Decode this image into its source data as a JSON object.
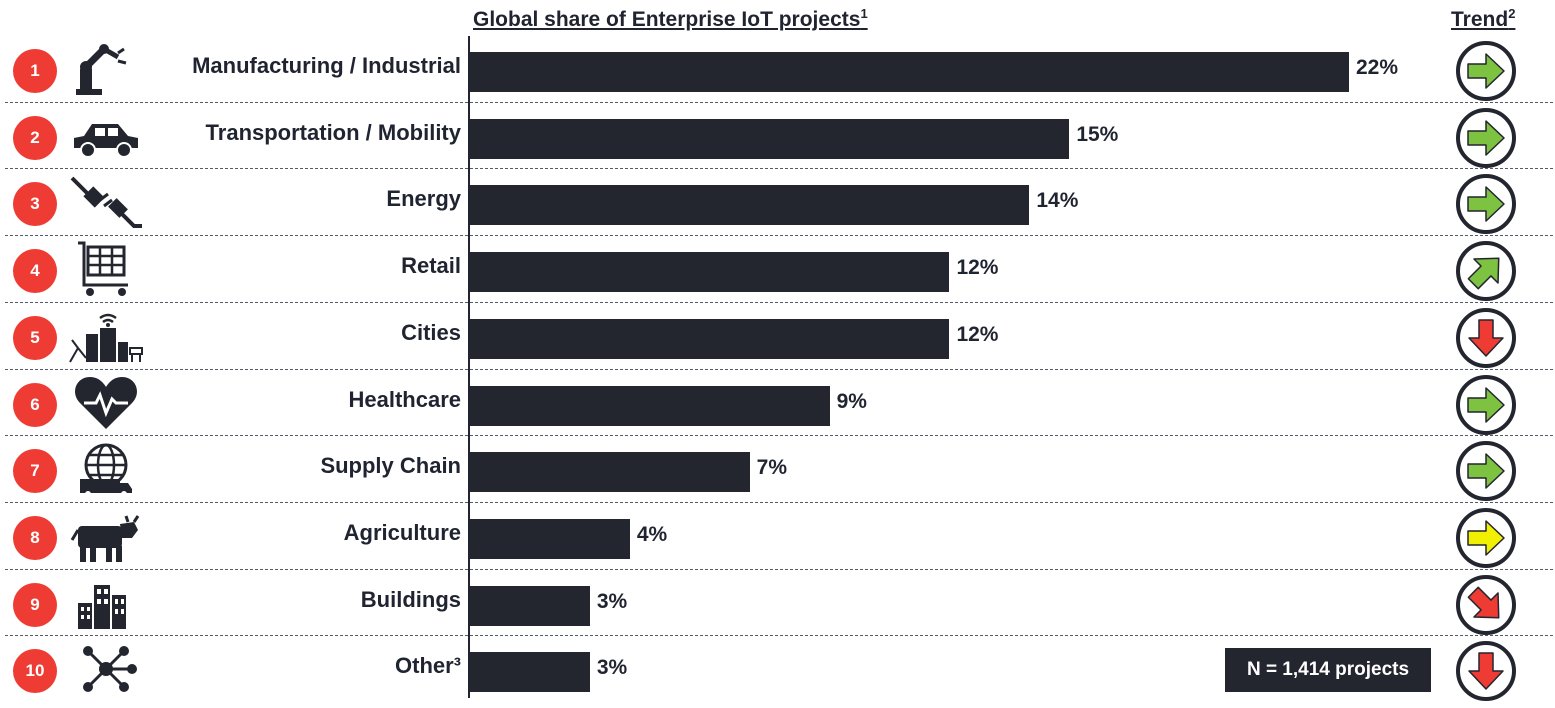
{
  "header": {
    "chart_title": "Global share of Enterprise IoT projects",
    "chart_title_note": "1",
    "trend_title": "Trend",
    "trend_title_note": "2"
  },
  "sample_size": "N = 1,414 projects",
  "colors": {
    "bar": "#23252f",
    "rank_badge": "#ee3b33",
    "trend_up": "#7dc240",
    "trend_flat": "#f0f000",
    "trend_down": "#ee3b33"
  },
  "chart_data": {
    "type": "bar",
    "orientation": "horizontal",
    "title": "Global share of Enterprise IoT projects",
    "unit": "%",
    "xlim": [
      0,
      24
    ],
    "grid": false,
    "categories": [
      "Manufacturing / Industrial",
      "Transportation / Mobility",
      "Energy",
      "Retail",
      "Cities",
      "Healthcare",
      "Supply Chain",
      "Agriculture",
      "Buildings",
      "Other³"
    ],
    "values": [
      22,
      15,
      14,
      12,
      12,
      9,
      7,
      4,
      3,
      3
    ],
    "value_labels": [
      "22%",
      "15%",
      "14%",
      "12%",
      "12%",
      "9%",
      "7%",
      "4%",
      "3%",
      "3%"
    ],
    "ranks": [
      "1",
      "2",
      "3",
      "4",
      "5",
      "6",
      "7",
      "8",
      "9",
      "10"
    ],
    "icons": [
      "robot-arm-icon",
      "car-icon",
      "plug-icon",
      "shopping-cart-icon",
      "smart-city-icon",
      "heart-pulse-icon",
      "globe-truck-icon",
      "cow-icon",
      "buildings-icon",
      "network-icon"
    ],
    "trends": [
      "right",
      "right",
      "right",
      "up-right",
      "down",
      "right",
      "right",
      "right-flat",
      "down-right",
      "down"
    ],
    "trend_colors": [
      "green",
      "green",
      "green",
      "green",
      "red",
      "green",
      "green",
      "yellow",
      "red",
      "red"
    ]
  }
}
